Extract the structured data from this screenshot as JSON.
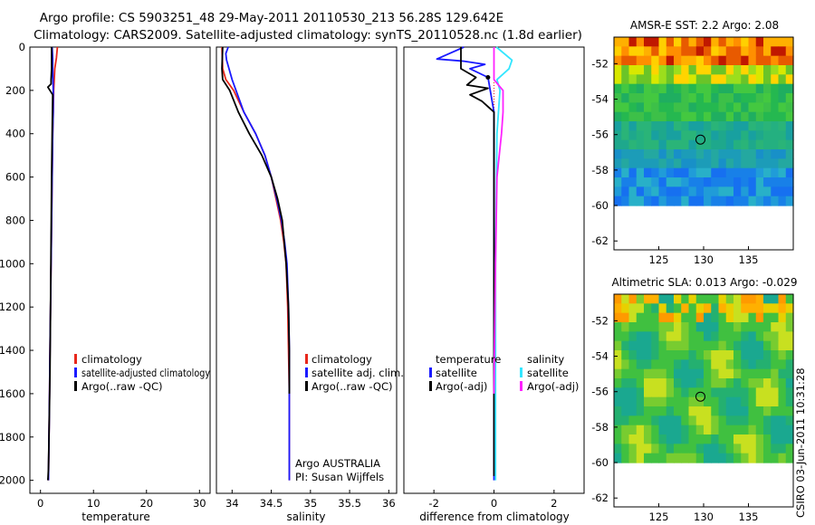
{
  "title": {
    "line1": "Argo profile: CS 5903251_48 29-May-2011 20110530_213 56.28S 129.642E",
    "line2": "Climatology: CARS2009. Satellite-adjusted climatology: synTS_20110528.nc (1.8d earlier)"
  },
  "colors": {
    "red": "#e8281c",
    "blue": "#1a1aff",
    "black": "#000000",
    "cyan": "#33e6ff",
    "magenta": "#ff22ff"
  },
  "chart_data": [
    {
      "id": "temperature",
      "type": "line",
      "xlabel": "temperature",
      "ylabel": "",
      "xlim": [
        -2,
        32
      ],
      "ylim": [
        2060,
        0
      ],
      "xticks": [
        "0",
        "10",
        "20",
        "30"
      ],
      "xtick_values": [
        0,
        10,
        20,
        30
      ],
      "yticks": [
        "0",
        "200",
        "400",
        "600",
        "800",
        "1000",
        "1200",
        "1400",
        "1600",
        "1800",
        "2000"
      ],
      "ytick_values": [
        0,
        200,
        400,
        600,
        800,
        1000,
        1200,
        1400,
        1600,
        1800,
        2000
      ],
      "legend": [
        "climatology",
        "satellite-adjusted climatology",
        "Argo(..raw -QC)"
      ],
      "series": [
        {
          "name": "climatology",
          "color": "red",
          "x": [
            3.2,
            3.0,
            2.7,
            2.5,
            2.4,
            2.3,
            2.2,
            2.1,
            2.0,
            1.9,
            1.8,
            1.7,
            1.6,
            1.5
          ],
          "y": [
            0,
            50,
            100,
            200,
            300,
            400,
            600,
            800,
            1000,
            1200,
            1400,
            1600,
            1800,
            2000
          ]
        },
        {
          "name": "satellite-adjusted climatology",
          "color": "blue",
          "x": [
            2.2,
            2.3,
            2.3,
            2.4,
            2.4,
            2.3,
            2.2,
            2.1,
            2.0,
            1.9,
            1.8,
            1.7,
            1.6,
            1.5
          ],
          "y": [
            0,
            50,
            100,
            200,
            300,
            400,
            600,
            800,
            1000,
            1200,
            1400,
            1600,
            1800,
            2000
          ]
        },
        {
          "name": "Argo(..raw -QC)",
          "color": "black",
          "x": [
            2.1,
            2.1,
            2.0,
            2.0,
            1.4,
            2.3,
            2.2,
            2.1,
            2.0,
            1.9,
            1.8,
            1.6,
            1.5,
            1.4
          ],
          "y": [
            0,
            100,
            150,
            170,
            185,
            220,
            400,
            600,
            900,
            1200,
            1500,
            1800,
            1950,
            2000
          ]
        }
      ]
    },
    {
      "id": "salinity",
      "type": "line",
      "xlabel": "salinity",
      "ylabel": "",
      "xlim": [
        33.8,
        36.1
      ],
      "ylim": [
        2060,
        0
      ],
      "xticks": [
        "34",
        "34.5",
        "35",
        "35.5",
        "36"
      ],
      "xtick_values": [
        34,
        34.5,
        35,
        35.5,
        36
      ],
      "legend": [
        "climatology",
        "satellite adj. clim.",
        "Argo(..raw -QC)"
      ],
      "annotation": [
        "Argo AUSTRALIA",
        "PI: Susan Wijffels"
      ],
      "series": [
        {
          "name": "climatology",
          "color": "red",
          "x": [
            33.87,
            33.88,
            33.92,
            34.02,
            34.15,
            34.3,
            34.42,
            34.5,
            34.56,
            34.62,
            34.66,
            34.69,
            34.71,
            34.72,
            34.73,
            34.73
          ],
          "y": [
            0,
            100,
            150,
            200,
            300,
            400,
            500,
            600,
            700,
            800,
            900,
            1000,
            1200,
            1400,
            1600,
            2000
          ]
        },
        {
          "name": "satellite adj. clim.",
          "color": "blue",
          "x": [
            33.95,
            33.92,
            33.93,
            34.0,
            34.15,
            34.3,
            34.42,
            34.5,
            34.57,
            34.63,
            34.67,
            34.7,
            34.72,
            34.73,
            34.73,
            34.73
          ],
          "y": [
            0,
            30,
            60,
            150,
            300,
            400,
            500,
            600,
            700,
            800,
            900,
            1000,
            1200,
            1400,
            1600,
            2000
          ]
        },
        {
          "name": "Argo(..raw -QC)",
          "color": "black",
          "x": [
            33.88,
            33.87,
            33.88,
            33.97,
            34.08,
            34.22,
            34.38,
            34.5,
            34.58,
            34.64,
            34.69,
            34.72,
            34.73,
            34.73
          ],
          "y": [
            0,
            100,
            150,
            200,
            300,
            400,
            500,
            600,
            700,
            800,
            1000,
            1200,
            1400,
            1600
          ]
        }
      ]
    },
    {
      "id": "difference",
      "type": "line",
      "xlabel": "difference from climatology",
      "ylabel": "",
      "xlim": [
        -3,
        3
      ],
      "ylim": [
        2060,
        0
      ],
      "xticks": [
        "-2",
        "0",
        "2"
      ],
      "xtick_values": [
        -2,
        0,
        2
      ],
      "legend_headers": [
        "temperature",
        "salinity"
      ],
      "legend": [
        "satellite",
        "Argo(-adj)",
        "satellite",
        "Argo(-adj)"
      ],
      "series": [
        {
          "name": "temperature satellite",
          "color": "blue",
          "x": [
            -1.0,
            -1.9,
            -1.0,
            -0.3,
            -0.8,
            -0.2,
            0.0,
            0.0,
            0.0,
            0.0,
            0.0,
            0.0
          ],
          "y": [
            0,
            55,
            65,
            80,
            100,
            140,
            300,
            600,
            1000,
            1400,
            1800,
            2000
          ]
        },
        {
          "name": "temperature Argo(-adj)",
          "color": "black",
          "x": [
            -1.1,
            -1.1,
            -0.6,
            -0.9,
            -0.2,
            -0.8,
            -0.4,
            0.0,
            0.0,
            0.0,
            0.0
          ],
          "y": [
            0,
            100,
            140,
            175,
            190,
            220,
            250,
            300,
            600,
            1200,
            1980
          ]
        },
        {
          "name": "salinity satellite",
          "color": "cyan",
          "x": [
            0.08,
            0.6,
            0.5,
            0.1,
            0.2,
            0.1,
            0.05,
            0.05
          ],
          "y": [
            0,
            60,
            100,
            150,
            200,
            400,
            1000,
            2000
          ]
        },
        {
          "name": "salinity Argo(-adj)",
          "color": "magenta",
          "x": [
            0.0,
            0.0,
            0.0,
            0.3,
            0.3,
            0.25,
            0.1,
            0.05,
            0.0
          ],
          "y": [
            0,
            100,
            150,
            200,
            300,
            400,
            600,
            1000,
            1600
          ]
        }
      ]
    },
    {
      "id": "sst_map",
      "type": "heatmap",
      "title": "AMSR-E SST: 2.2 Argo: 2.08",
      "xlim": [
        120,
        140
      ],
      "ylim": [
        -62.5,
        -50.5
      ],
      "xticks": [
        "125",
        "130",
        "135"
      ],
      "xtick_values": [
        125,
        130,
        135
      ],
      "yticks": [
        "-52",
        "-54",
        "-56",
        "-58",
        "-60",
        "-62"
      ],
      "ytick_values": [
        -52,
        -54,
        -56,
        -58,
        -60,
        -62
      ],
      "argo_position": [
        129.642,
        -56.28
      ]
    },
    {
      "id": "sla_map",
      "type": "heatmap",
      "title": "Altimetric SLA: 0.013 Argo: -0.029",
      "xlim": [
        120,
        140
      ],
      "ylim": [
        -62.5,
        -50.5
      ],
      "xticks": [
        "125",
        "130",
        "135"
      ],
      "xtick_values": [
        125,
        130,
        135
      ],
      "yticks": [
        "-52",
        "-54",
        "-56",
        "-58",
        "-60",
        "-62"
      ],
      "ytick_values": [
        -52,
        -54,
        -56,
        -58,
        -60,
        -62
      ],
      "argo_position": [
        129.642,
        -56.28
      ]
    }
  ],
  "credit": "CSIRO 03-Jun-2011 10:31:28"
}
